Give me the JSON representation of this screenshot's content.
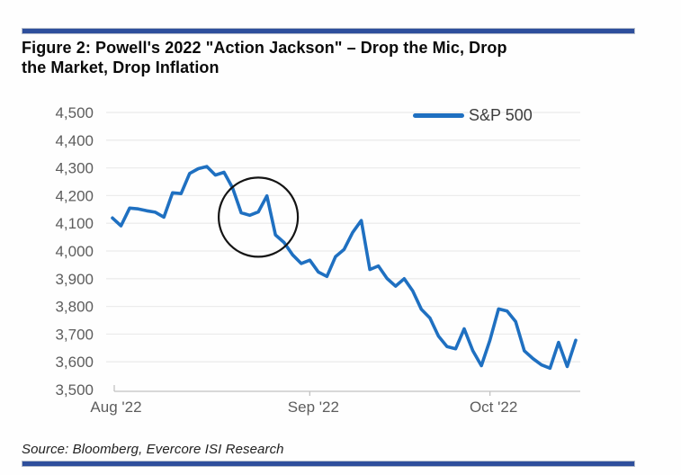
{
  "figure": {
    "title": "Figure 2: Powell's 2022 \"Action Jackson\" – Drop the Mic, Drop the Market, Drop Inflation",
    "title_lines": [
      "Figure 2: Powell's 2022 \"Action Jackson\" – Drop the Mic, Drop",
      "the Market, Drop Inflation"
    ],
    "source": "Source: Bloomberg, Evercore ISI Research"
  },
  "colors": {
    "divider_bar": "#2e4f9c",
    "line": "#1f70c1",
    "gridline": "#ececec",
    "axis_line": "#c2c2c2",
    "axis_text": "#5d5d5d",
    "annotation_circle": "#141414"
  },
  "chart_data": {
    "type": "line",
    "title": "",
    "xlabel": "",
    "ylabel": "",
    "ylim": [
      3500,
      4500
    ],
    "grid": true,
    "legend_position": "top-right",
    "yticks": [
      4500,
      4400,
      4300,
      4200,
      4100,
      4000,
      3900,
      3800,
      3700,
      3600,
      3500
    ],
    "xticks": [
      {
        "label": "Aug '22",
        "index": 0
      },
      {
        "label": "Sep '22",
        "index": 23
      },
      {
        "label": "Oct '22",
        "index": 44
      }
    ],
    "series": [
      {
        "name": "S&P 500",
        "color": "#1f70c1",
        "dates": [
          "Aug 1",
          "Aug 2",
          "Aug 3",
          "Aug 4",
          "Aug 5",
          "Aug 8",
          "Aug 9",
          "Aug 10",
          "Aug 11",
          "Aug 12",
          "Aug 15",
          "Aug 16",
          "Aug 17",
          "Aug 18",
          "Aug 19",
          "Aug 22",
          "Aug 23",
          "Aug 24",
          "Aug 25",
          "Aug 26",
          "Aug 29",
          "Aug 30",
          "Aug 31",
          "Sep 1",
          "Sep 2",
          "Sep 6",
          "Sep 7",
          "Sep 8",
          "Sep 9",
          "Sep 12",
          "Sep 13",
          "Sep 14",
          "Sep 15",
          "Sep 16",
          "Sep 19",
          "Sep 20",
          "Sep 21",
          "Sep 22",
          "Sep 23",
          "Sep 26",
          "Sep 27",
          "Sep 28",
          "Sep 29",
          "Sep 30",
          "Oct 3",
          "Oct 4",
          "Oct 5",
          "Oct 6",
          "Oct 7",
          "Oct 10",
          "Oct 11",
          "Oct 12",
          "Oct 13",
          "Oct 14",
          "Oct 17"
        ],
        "values": [
          4119,
          4091,
          4155,
          4152,
          4145,
          4140,
          4122,
          4210,
          4207,
          4280,
          4297,
          4305,
          4274,
          4284,
          4228,
          4138,
          4129,
          4141,
          4199,
          4058,
          4031,
          3986,
          3955,
          3967,
          3924,
          3908,
          3980,
          4006,
          4067,
          4110,
          3933,
          3946,
          3901,
          3873,
          3900,
          3856,
          3790,
          3758,
          3693,
          3655,
          3647,
          3719,
          3640,
          3586,
          3678,
          3791,
          3783,
          3745,
          3640,
          3612,
          3589,
          3577,
          3670,
          3583,
          3678
        ]
      }
    ],
    "annotation": {
      "shape": "circle",
      "center_index": 17,
      "center_value": 4122,
      "radius_px": 44
    }
  }
}
